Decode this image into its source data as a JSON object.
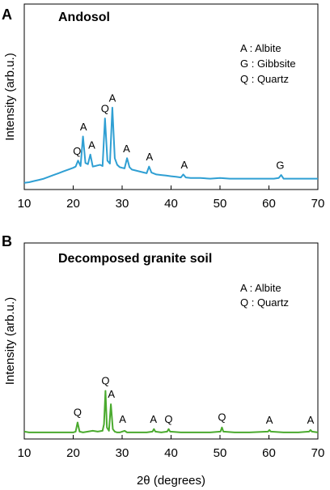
{
  "chart_data": [
    {
      "panel_letter": "A",
      "title": "Andosol",
      "type": "line",
      "xlim": [
        10,
        70
      ],
      "xticks": [
        10,
        20,
        30,
        40,
        50,
        60,
        70
      ],
      "ylabel": "Intensity (arb.u.)",
      "xlabel": "",
      "color": "#2f9fd3",
      "legend": [
        "A : Albite",
        "G : Gibbsite",
        "Q : Quartz"
      ],
      "legend_position": "top-right",
      "series": [
        {
          "x": [
            10,
            11,
            12,
            13,
            14,
            15,
            16,
            17,
            18,
            19,
            20,
            20.5,
            21,
            21.5,
            22,
            22.5,
            23,
            23.5,
            24,
            24.5,
            25,
            25.5,
            26,
            26.5,
            27,
            27.5,
            28,
            28.5,
            29,
            29.5,
            30,
            30.5,
            31,
            31.5,
            32,
            33,
            34,
            35,
            35.5,
            36,
            37,
            38,
            39,
            40,
            41,
            42,
            42.5,
            43,
            44,
            46,
            48,
            50,
            52,
            54,
            56,
            58,
            60,
            61,
            62,
            62.5,
            63,
            64,
            66,
            68,
            70
          ],
          "y": [
            3,
            4,
            6,
            8,
            10,
            13,
            16,
            19,
            22,
            25,
            28,
            30,
            40,
            31,
            80,
            36,
            34,
            50,
            30,
            31,
            32,
            33,
            31,
            110,
            40,
            35,
            128,
            44,
            33,
            29,
            28,
            27,
            44,
            29,
            25,
            23,
            21,
            19,
            30,
            20,
            17,
            16,
            15,
            14,
            13,
            12,
            17,
            12,
            11,
            11,
            10,
            11,
            10,
            10,
            10,
            10,
            10,
            10,
            11,
            16,
            10,
            10,
            10,
            10,
            10
          ]
        }
      ],
      "annotations": [
        {
          "label": "Q",
          "x": 20.8,
          "y": 42
        },
        {
          "label": "A",
          "x": 22.1,
          "y": 82
        },
        {
          "label": "A",
          "x": 23.8,
          "y": 52
        },
        {
          "label": "Q",
          "x": 26.5,
          "y": 112
        },
        {
          "label": "A",
          "x": 28.0,
          "y": 130
        },
        {
          "label": "A",
          "x": 30.9,
          "y": 46
        },
        {
          "label": "A",
          "x": 35.6,
          "y": 32
        },
        {
          "label": "A",
          "x": 42.7,
          "y": 19
        },
        {
          "label": "G",
          "x": 62.3,
          "y": 18
        }
      ],
      "ylim": [
        0,
        300
      ]
    },
    {
      "panel_letter": "B",
      "title": "Decomposed granite soil",
      "type": "line",
      "xlim": [
        10,
        70
      ],
      "xticks": [
        10,
        20,
        30,
        40,
        50,
        60,
        70
      ],
      "ylabel": "Intensity (arb.u.)",
      "xlabel": "2θ (degrees)",
      "color": "#4aaa2e",
      "legend": [
        "A : Albite",
        "Q : Quartz"
      ],
      "legend_position": "top-right",
      "series": [
        {
          "x": [
            10,
            11,
            12,
            14,
            16,
            18,
            20,
            20.5,
            20.9,
            21.3,
            22,
            23,
            24,
            25,
            26,
            26.3,
            26.6,
            26.9,
            27.3,
            27.7,
            28.1,
            28.5,
            29,
            29.5,
            30,
            30.5,
            31,
            33,
            35,
            36.2,
            36.5,
            36.8,
            38,
            39.2,
            39.5,
            39.8,
            42,
            45,
            48,
            50.1,
            50.4,
            50.7,
            53,
            56,
            59.8,
            60.1,
            60.4,
            63,
            66,
            68.2,
            68.5,
            68.8,
            70
          ],
          "y": [
            3,
            2,
            2,
            2,
            2,
            2,
            2,
            3,
            14,
            3,
            2,
            3,
            4,
            3,
            4,
            12,
            52,
            8,
            4,
            36,
            6,
            3,
            2,
            2,
            3,
            4,
            2,
            2,
            2,
            3,
            6,
            3,
            2,
            3,
            6,
            3,
            2,
            2,
            2,
            3,
            8,
            3,
            2,
            2,
            3,
            5,
            3,
            2,
            2,
            3,
            5,
            3,
            2
          ]
        }
      ],
      "annotations": [
        {
          "label": "Q",
          "x": 20.9,
          "y": 16
        },
        {
          "label": "Q",
          "x": 26.6,
          "y": 54
        },
        {
          "label": "A",
          "x": 27.8,
          "y": 38
        },
        {
          "label": "A",
          "x": 30.1,
          "y": 8
        },
        {
          "label": "A",
          "x": 36.4,
          "y": 8
        },
        {
          "label": "Q",
          "x": 39.5,
          "y": 8
        },
        {
          "label": "Q",
          "x": 50.4,
          "y": 10
        },
        {
          "label": "A",
          "x": 60.1,
          "y": 7
        },
        {
          "label": "A",
          "x": 68.5,
          "y": 7
        }
      ],
      "ylim": [
        0,
        230
      ]
    }
  ]
}
